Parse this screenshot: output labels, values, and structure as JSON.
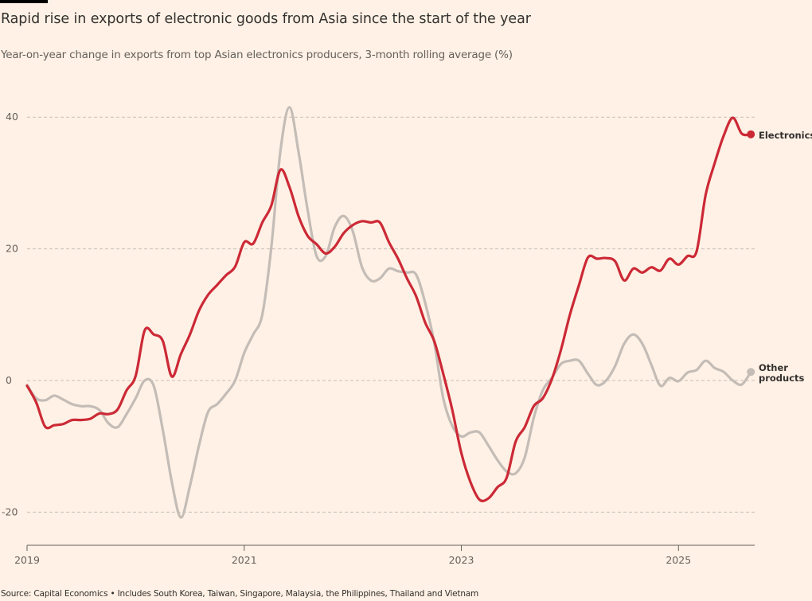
{
  "header": {
    "title": "Rapid rise in exports of electronic goods from Asia since the start of the year",
    "subtitle": "Year-on-year change in exports from top Asian electronics producers, 3-month rolling average (%)"
  },
  "footer": {
    "source": "Source: Capital Economics • Includes South Korea, Taiwan, Singapore, Malaysia, the Philippines, Thailand and Vietnam"
  },
  "chart_data": {
    "type": "line",
    "title": "Rapid rise in exports of electronic goods from Asia since the start of the year",
    "subtitle": "Year-on-year change in exports from top Asian electronics producers, 3-month rolling average (%)",
    "xlabel": "",
    "ylabel": "",
    "ylim": [
      -25,
      45
    ],
    "xlim": [
      "2019-01",
      "2025-11"
    ],
    "yticks": [
      40,
      20,
      0,
      -20
    ],
    "ytick_labels": [
      "40",
      "20",
      "0",
      "-20"
    ],
    "xticks": [
      "2019-01",
      "2021-01",
      "2023-01",
      "2025-01"
    ],
    "xtick_labels": [
      "2019",
      "2021",
      "2023",
      "2025"
    ],
    "grid": "horizontal dashed",
    "legend": "end-of-line labels",
    "x": [
      "2019-01",
      "2019-02",
      "2019-03",
      "2019-04",
      "2019-05",
      "2019-06",
      "2019-07",
      "2019-08",
      "2019-09",
      "2019-10",
      "2019-11",
      "2019-12",
      "2020-01",
      "2020-02",
      "2020-03",
      "2020-04",
      "2020-05",
      "2020-06",
      "2020-07",
      "2020-08",
      "2020-09",
      "2020-10",
      "2020-11",
      "2020-12",
      "2021-01",
      "2021-02",
      "2021-03",
      "2021-04",
      "2021-05",
      "2021-06",
      "2021-07",
      "2021-08",
      "2021-09",
      "2021-10",
      "2021-11",
      "2021-12",
      "2022-01",
      "2022-02",
      "2022-03",
      "2022-04",
      "2022-05",
      "2022-06",
      "2022-07",
      "2022-08",
      "2022-09",
      "2022-10",
      "2022-11",
      "2022-12",
      "2023-01",
      "2023-02",
      "2023-03",
      "2023-04",
      "2023-05",
      "2023-06",
      "2023-07",
      "2023-08",
      "2023-09",
      "2023-10",
      "2023-11",
      "2023-12",
      "2024-01",
      "2024-02",
      "2024-03",
      "2024-04",
      "2024-05",
      "2024-06",
      "2024-07",
      "2024-08",
      "2024-09",
      "2024-10",
      "2024-11",
      "2024-12",
      "2025-01",
      "2025-02",
      "2025-03",
      "2025-04",
      "2025-05",
      "2025-06",
      "2025-07",
      "2025-08",
      "2025-09"
    ],
    "series": [
      {
        "name": "Other products",
        "color": "#c4bcb6",
        "values": [
          -0.7,
          -2.7,
          -3,
          -2.3,
          -2.9,
          -3.6,
          -3.9,
          -3.9,
          -4.5,
          -6.5,
          -7.1,
          -5.1,
          -2.7,
          0,
          -0.8,
          -7.5,
          -15.4,
          -20.8,
          -16,
          -9.9,
          -4.8,
          -3.6,
          -2,
          0,
          4.2,
          7,
          10,
          20.3,
          34.8,
          41.5,
          34.8,
          26,
          18.9,
          18.9,
          23.3,
          25,
          22.7,
          17.3,
          15.2,
          15.5,
          17,
          16.6,
          16.4,
          16.1,
          11.8,
          5.8,
          -2.7,
          -6.9,
          -8.5,
          -7.9,
          -7.9,
          -9.9,
          -12.1,
          -13.8,
          -14.1,
          -11.7,
          -5.7,
          -1.5,
          0.4,
          2.5,
          3,
          3,
          1,
          -0.7,
          0,
          2.2,
          5.6,
          7,
          5.6,
          2.4,
          -0.8,
          0.4,
          -0.1,
          1.2,
          1.6,
          3,
          1.9,
          1.3,
          0,
          -0.6,
          1.3
        ]
      },
      {
        "name": "Electronics",
        "color": "#cc2936",
        "values": [
          -0.8,
          -3.3,
          -7,
          -6.8,
          -6.6,
          -6,
          -6,
          -5.8,
          -5,
          -5.1,
          -4.4,
          -1.5,
          0.7,
          7.6,
          7,
          6,
          0.6,
          4,
          7,
          10.6,
          13,
          14.5,
          16,
          17.3,
          21,
          20.8,
          24,
          26.6,
          32,
          29.4,
          25,
          22,
          20.7,
          19.3,
          20.3,
          22.4,
          23.6,
          24.2,
          24,
          24,
          21,
          18.5,
          15.5,
          12.8,
          8.8,
          6,
          1,
          -4.5,
          -11,
          -15.4,
          -18.1,
          -17.9,
          -16.2,
          -14.8,
          -9.3,
          -7.1,
          -3.9,
          -2.7,
          0.2,
          4.6,
          10,
          14.5,
          18.7,
          18.5,
          18.6,
          18.1,
          15.2,
          17,
          16.4,
          17.2,
          16.7,
          18.5,
          17.6,
          18.9,
          19.6,
          28.2,
          33,
          37.2,
          39.9,
          37.5,
          37.4
        ]
      }
    ],
    "labels": {
      "electronics": "Electronics",
      "other_line1": "Other",
      "other_line2": "products"
    }
  }
}
